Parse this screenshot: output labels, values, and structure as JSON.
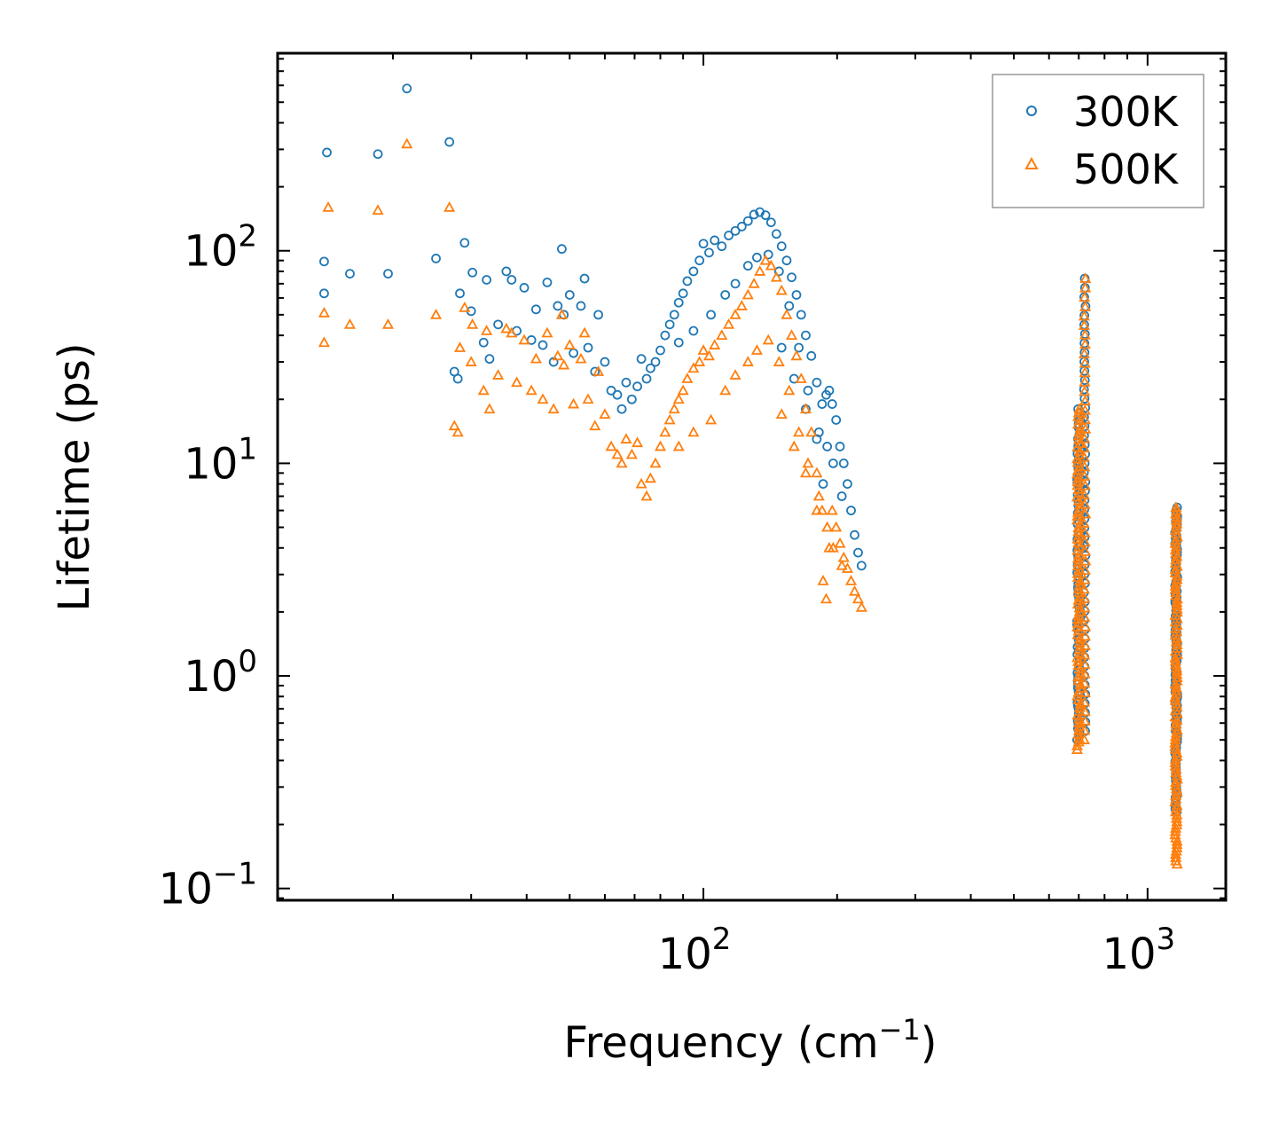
{
  "chart_data": {
    "type": "scatter",
    "title": "",
    "xlabel": "Frequency (cm",
    "xlabel_sup": "−1",
    "xlabel_end": ")",
    "ylabel": "Lifetime (ps)",
    "xscale": "log",
    "yscale": "log",
    "xlim": [
      11,
      1500
    ],
    "ylim": [
      0.088,
      850
    ],
    "x_ticks": [
      {
        "value": 100,
        "base": "10",
        "exp": "2"
      },
      {
        "value": 1000,
        "base": "10",
        "exp": "3"
      }
    ],
    "y_ticks": [
      {
        "value": 0.1,
        "base": "10",
        "exp": "−1"
      },
      {
        "value": 1,
        "base": "10",
        "exp": "0"
      },
      {
        "value": 10,
        "base": "10",
        "exp": "1"
      },
      {
        "value": 100,
        "base": "10",
        "exp": "2"
      }
    ],
    "legend_position": "top-right",
    "series": [
      {
        "name": "300K",
        "color": "#1f77b4",
        "marker": "circle",
        "points": [
          [
            14,
            89
          ],
          [
            14,
            63
          ],
          [
            14.2,
            290
          ],
          [
            16,
            78
          ],
          [
            18.5,
            285
          ],
          [
            19.5,
            78
          ],
          [
            21.5,
            580
          ],
          [
            25,
            92
          ],
          [
            26.8,
            325
          ],
          [
            27.5,
            27
          ],
          [
            28,
            25
          ],
          [
            28.3,
            63
          ],
          [
            29,
            109
          ],
          [
            30,
            52
          ],
          [
            30.2,
            79
          ],
          [
            32,
            37
          ],
          [
            32.5,
            73
          ],
          [
            33,
            31
          ],
          [
            34.5,
            45
          ],
          [
            36,
            80
          ],
          [
            37,
            73
          ],
          [
            38,
            42
          ],
          [
            39.5,
            67
          ],
          [
            41,
            38
          ],
          [
            42,
            53
          ],
          [
            43.5,
            36
          ],
          [
            44.5,
            71
          ],
          [
            46,
            30
          ],
          [
            47,
            55
          ],
          [
            48,
            102
          ],
          [
            48.5,
            50
          ],
          [
            50,
            62
          ],
          [
            51,
            33
          ],
          [
            53,
            55
          ],
          [
            54,
            74
          ],
          [
            55,
            35
          ],
          [
            57,
            27
          ],
          [
            58,
            50
          ],
          [
            60,
            30
          ],
          [
            62,
            22
          ],
          [
            64,
            21
          ],
          [
            65.5,
            18
          ],
          [
            67,
            24
          ],
          [
            69,
            20
          ],
          [
            71,
            23
          ],
          [
            72.5,
            31
          ],
          [
            74.5,
            25
          ],
          [
            76,
            28
          ],
          [
            78,
            30
          ],
          [
            80,
            34
          ],
          [
            82,
            40
          ],
          [
            84,
            45
          ],
          [
            86,
            50
          ],
          [
            88,
            57
          ],
          [
            90,
            63
          ],
          [
            92,
            72
          ],
          [
            95,
            80
          ],
          [
            98,
            90
          ],
          [
            100,
            108
          ],
          [
            103,
            98
          ],
          [
            106,
            112
          ],
          [
            110,
            105
          ],
          [
            114,
            118
          ],
          [
            118,
            124
          ],
          [
            122,
            130
          ],
          [
            126,
            138
          ],
          [
            130,
            148
          ],
          [
            134,
            152
          ],
          [
            138,
            147
          ],
          [
            142,
            136
          ],
          [
            146,
            120
          ],
          [
            150,
            105
          ],
          [
            154,
            90
          ],
          [
            158,
            75
          ],
          [
            162,
            62
          ],
          [
            166,
            50
          ],
          [
            170,
            40
          ],
          [
            175,
            32
          ],
          [
            180,
            24
          ],
          [
            185,
            19
          ],
          [
            189,
            21
          ],
          [
            192,
            22
          ],
          [
            195,
            19
          ],
          [
            199,
            16
          ],
          [
            203,
            12
          ],
          [
            207,
            10
          ],
          [
            211,
            8
          ],
          [
            215,
            6
          ],
          [
            219,
            4.6
          ],
          [
            223,
            3.8
          ],
          [
            227,
            3.3
          ],
          [
            88,
            37
          ],
          [
            95,
            42
          ],
          [
            104,
            50
          ],
          [
            112,
            62
          ],
          [
            118,
            70
          ],
          [
            126,
            85
          ],
          [
            132,
            93
          ],
          [
            140,
            96
          ],
          [
            148,
            80
          ],
          [
            156,
            55
          ],
          [
            164,
            35
          ],
          [
            172,
            22
          ],
          [
            182,
            14
          ],
          [
            190,
            12
          ],
          [
            196,
            10
          ],
          [
            205,
            7
          ],
          [
            150,
            35
          ],
          [
            160,
            25
          ],
          [
            170,
            18
          ],
          [
            180,
            13
          ],
          [
            186,
            8
          ]
        ]
      },
      {
        "name": "500K",
        "color": "#ff7f0e",
        "marker": "triangle",
        "points": [
          [
            14,
            51
          ],
          [
            14,
            37
          ],
          [
            14.3,
            160
          ],
          [
            16,
            45
          ],
          [
            18.5,
            155
          ],
          [
            19.5,
            45
          ],
          [
            21.5,
            318
          ],
          [
            25,
            50
          ],
          [
            26.8,
            160
          ],
          [
            27.5,
            15
          ],
          [
            28,
            14
          ],
          [
            28.3,
            35
          ],
          [
            29,
            54
          ],
          [
            30,
            30
          ],
          [
            30.2,
            45
          ],
          [
            32,
            22
          ],
          [
            32.5,
            42
          ],
          [
            33,
            18
          ],
          [
            34.5,
            26
          ],
          [
            36,
            43
          ],
          [
            37,
            41
          ],
          [
            38,
            24
          ],
          [
            39.5,
            38
          ],
          [
            41,
            22
          ],
          [
            42,
            31
          ],
          [
            43.5,
            20
          ],
          [
            44.5,
            41
          ],
          [
            46,
            18
          ],
          [
            47,
            32
          ],
          [
            48,
            50
          ],
          [
            48.5,
            29
          ],
          [
            50,
            36
          ],
          [
            51,
            19
          ],
          [
            53,
            31
          ],
          [
            54,
            41
          ],
          [
            55,
            20
          ],
          [
            57,
            15
          ],
          [
            58,
            27
          ],
          [
            60,
            17
          ],
          [
            62,
            12
          ],
          [
            64,
            11
          ],
          [
            65.5,
            10
          ],
          [
            67,
            13
          ],
          [
            69,
            11
          ],
          [
            71,
            12.5
          ],
          [
            72.5,
            8
          ],
          [
            74.5,
            7
          ],
          [
            76,
            8.5
          ],
          [
            78,
            10
          ],
          [
            80,
            12
          ],
          [
            82,
            14
          ],
          [
            84,
            16
          ],
          [
            86,
            18
          ],
          [
            88,
            20
          ],
          [
            90,
            22
          ],
          [
            92,
            25
          ],
          [
            95,
            28
          ],
          [
            98,
            30
          ],
          [
            100,
            34
          ],
          [
            103,
            32
          ],
          [
            106,
            36
          ],
          [
            110,
            40
          ],
          [
            114,
            45
          ],
          [
            118,
            50
          ],
          [
            122,
            55
          ],
          [
            126,
            62
          ],
          [
            130,
            70
          ],
          [
            134,
            80
          ],
          [
            138,
            90
          ],
          [
            142,
            85
          ],
          [
            146,
            75
          ],
          [
            150,
            65
          ],
          [
            154,
            50
          ],
          [
            158,
            40
          ],
          [
            162,
            32
          ],
          [
            166,
            25
          ],
          [
            170,
            18
          ],
          [
            175,
            14
          ],
          [
            180,
            9
          ],
          [
            185,
            6
          ],
          [
            189,
            2.3
          ],
          [
            192,
            4
          ],
          [
            195,
            6
          ],
          [
            199,
            5
          ],
          [
            203,
            4.2
          ],
          [
            207,
            3.6
          ],
          [
            211,
            3.2
          ],
          [
            215,
            2.8
          ],
          [
            219,
            2.5
          ],
          [
            223,
            2.3
          ],
          [
            227,
            2.1
          ],
          [
            88,
            12
          ],
          [
            95,
            14
          ],
          [
            104,
            16
          ],
          [
            112,
            22
          ],
          [
            118,
            26
          ],
          [
            126,
            30
          ],
          [
            132,
            34
          ],
          [
            140,
            38
          ],
          [
            148,
            30
          ],
          [
            156,
            22
          ],
          [
            164,
            14
          ],
          [
            172,
            10
          ],
          [
            182,
            7
          ],
          [
            190,
            5
          ],
          [
            196,
            4
          ],
          [
            205,
            3.3
          ],
          [
            150,
            17
          ],
          [
            160,
            12
          ],
          [
            170,
            9
          ],
          [
            180,
            6
          ],
          [
            186,
            2.8
          ]
        ]
      }
    ],
    "clusters": [
      {
        "series": "300K",
        "x": 700,
        "xspread": 12,
        "ymin": 0.5,
        "ymax": 18,
        "count": 90
      },
      {
        "series": "300K",
        "x": 722,
        "xspread": 6,
        "ymin": 0.55,
        "ymax": 74,
        "count": 50
      },
      {
        "series": "300K",
        "x": 1160,
        "xspread": 14,
        "ymin": 0.23,
        "ymax": 6.2,
        "count": 110
      },
      {
        "series": "500K",
        "x": 700,
        "xspread": 12,
        "ymin": 0.45,
        "ymax": 18,
        "count": 90
      },
      {
        "series": "500K",
        "x": 722,
        "xspread": 6,
        "ymin": 0.5,
        "ymax": 74,
        "count": 50
      },
      {
        "series": "500K",
        "x": 1160,
        "xspread": 14,
        "ymin": 0.13,
        "ymax": 6.2,
        "count": 110
      }
    ]
  }
}
